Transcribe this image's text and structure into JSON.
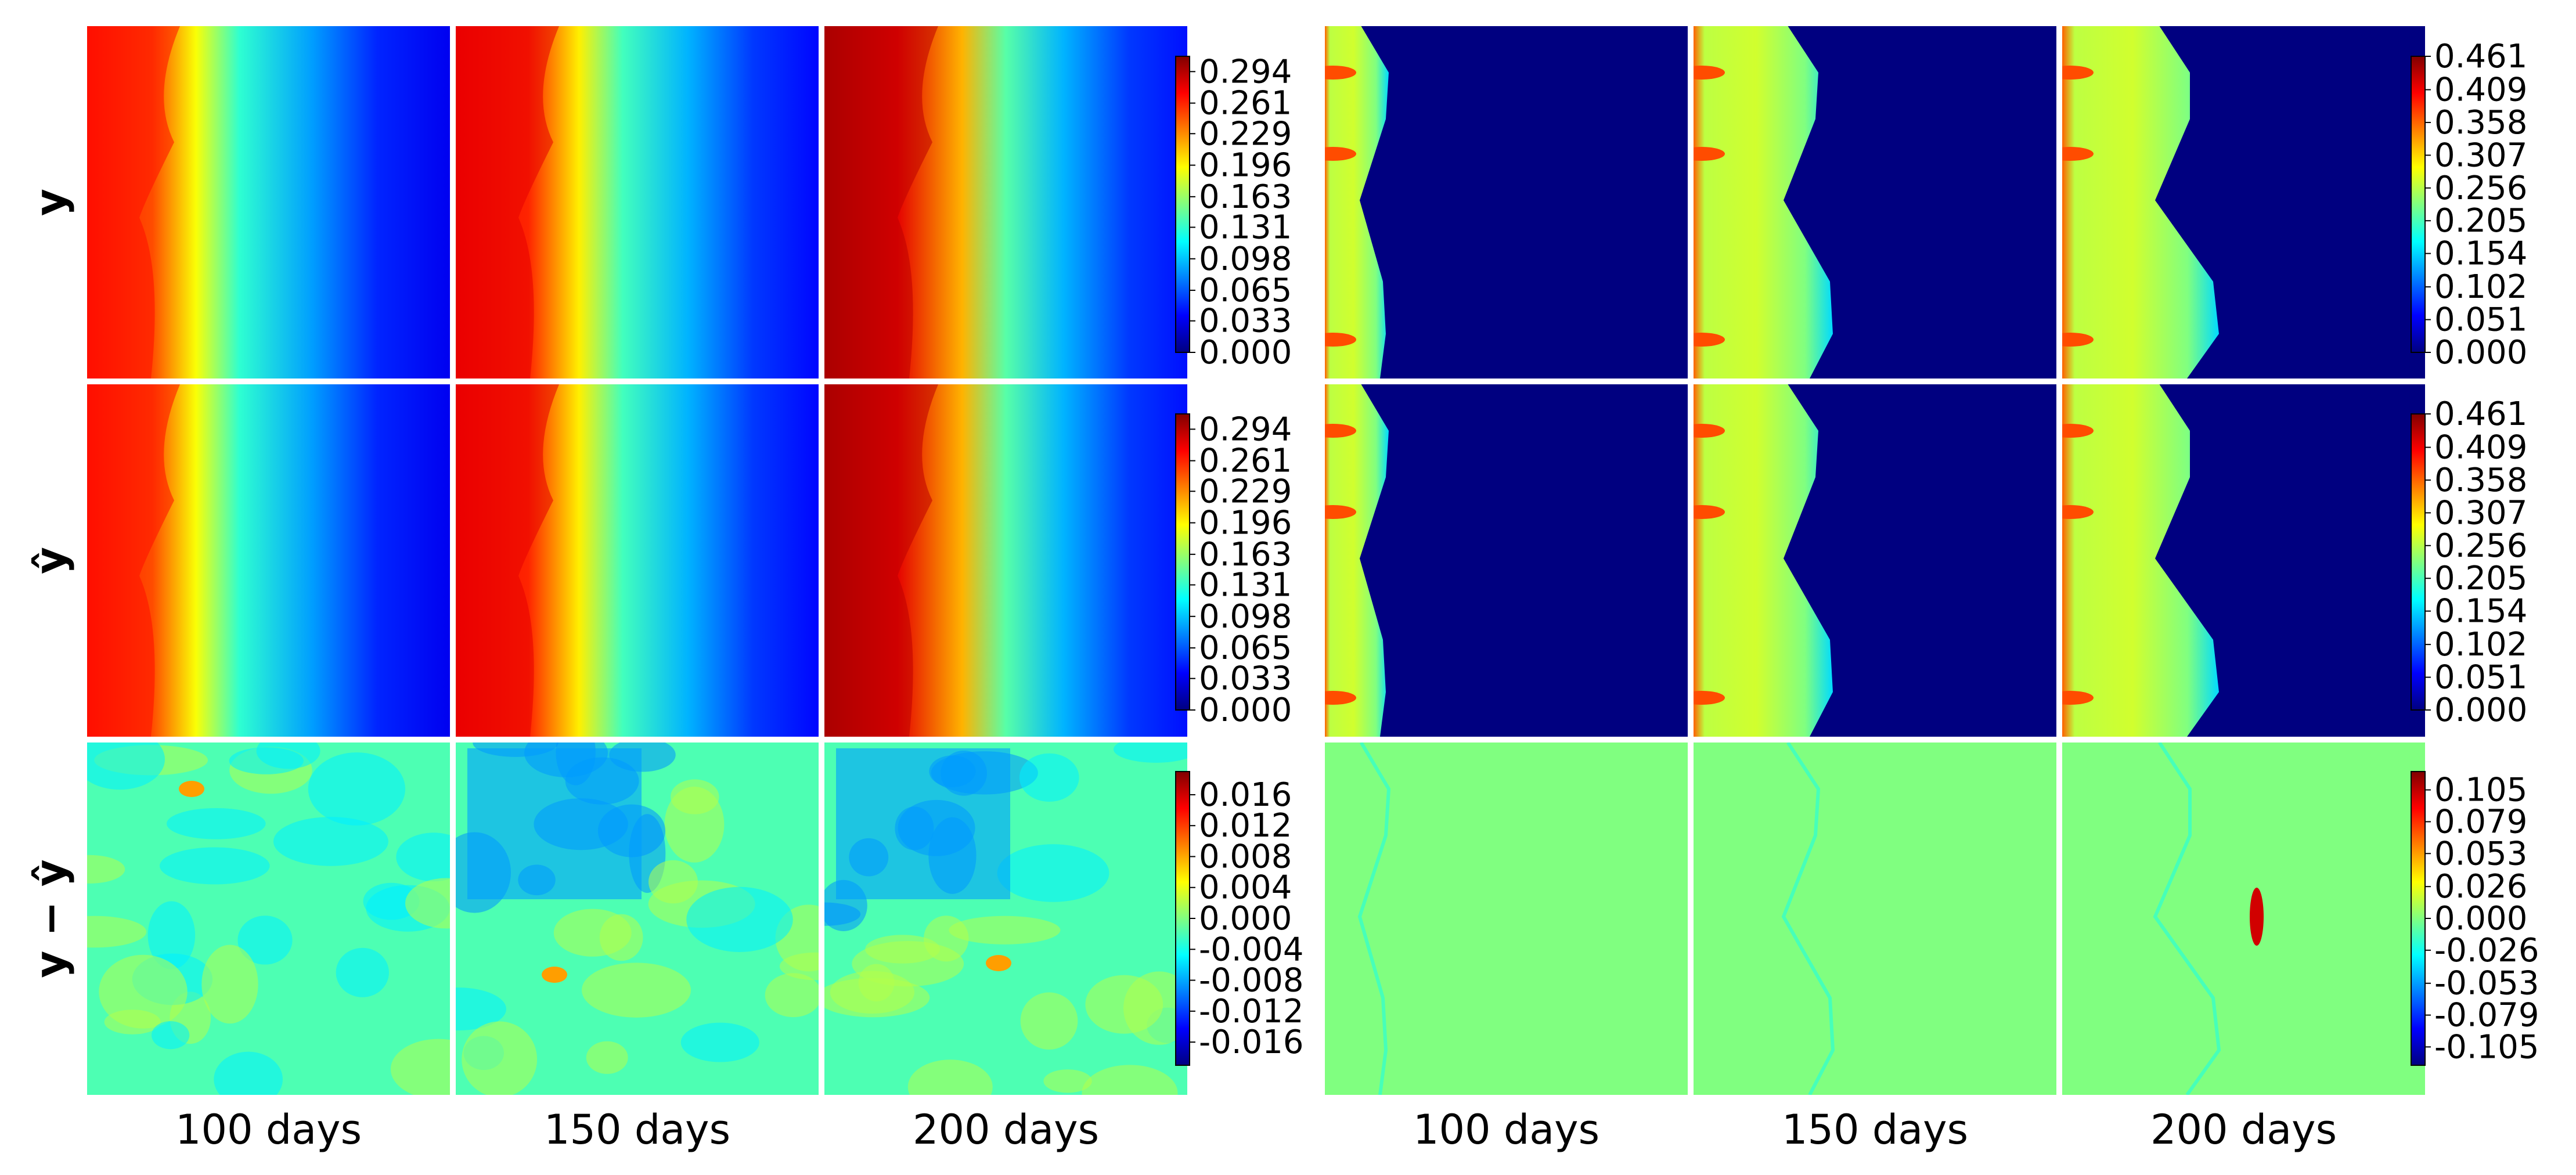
{
  "chart_data": {
    "type": "heatmap",
    "colormap": "jet",
    "row_labels": [
      "y",
      "ŷ",
      "y − ŷ"
    ],
    "time_labels": [
      "100 days",
      "150 days",
      "200 days"
    ],
    "panel_groups": [
      {
        "colorbars": [
          {
            "vmin": 0.0,
            "vmax": 0.31,
            "ticks": [
              "0.294",
              "0.261",
              "0.229",
              "0.196",
              "0.163",
              "0.131",
              "0.098",
              "0.065",
              "0.033",
              "0.000"
            ]
          },
          {
            "vmin": 0.0,
            "vmax": 0.31,
            "ticks": [
              "0.294",
              "0.261",
              "0.229",
              "0.196",
              "0.163",
              "0.131",
              "0.098",
              "0.065",
              "0.033",
              "0.000"
            ]
          },
          {
            "vmin": -0.019,
            "vmax": 0.019,
            "ticks": [
              "0.016",
              "0.012",
              "0.008",
              "0.004",
              "0.000",
              "-0.004",
              "-0.008",
              "-0.012",
              "-0.016"
            ]
          }
        ]
      },
      {
        "colorbars": [
          {
            "vmin": 0.0,
            "vmax": 0.461,
            "ticks": [
              "0.461",
              "0.409",
              "0.358",
              "0.307",
              "0.256",
              "0.205",
              "0.154",
              "0.102",
              "0.051",
              "0.000"
            ]
          },
          {
            "vmin": 0.0,
            "vmax": 0.461,
            "ticks": [
              "0.461",
              "0.409",
              "0.358",
              "0.307",
              "0.256",
              "0.205",
              "0.154",
              "0.102",
              "0.051",
              "0.000"
            ]
          },
          {
            "vmin": -0.12,
            "vmax": 0.12,
            "ticks": [
              "0.105",
              "0.079",
              "0.053",
              "0.026",
              "0.000",
              "-0.026",
              "-0.053",
              "-0.079",
              "-0.105"
            ]
          }
        ]
      }
    ],
    "legend": "colorbar right of each row",
    "grid": false
  }
}
